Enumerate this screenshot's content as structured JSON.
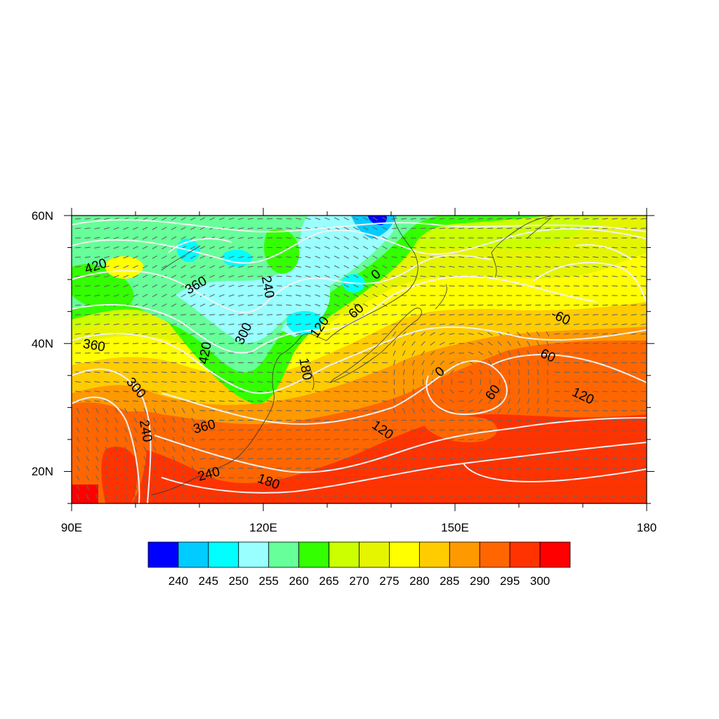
{
  "map": {
    "x_ticks": [
      "90E",
      "120E",
      "150E",
      "180"
    ],
    "y_ticks": [
      "60N",
      "40N",
      "20N"
    ],
    "contour_labels": [
      {
        "text": "420",
        "lon": 93.8,
        "lat": 52.0,
        "rot": -18
      },
      {
        "text": "360",
        "lon": 109.5,
        "lat": 49.0,
        "rot": -30
      },
      {
        "text": "240",
        "lon": 120.6,
        "lat": 48.8,
        "rot": 80
      },
      {
        "text": "300",
        "lon": 117.0,
        "lat": 41.5,
        "rot": -65
      },
      {
        "text": "420",
        "lon": 111.0,
        "lat": 38.5,
        "rot": -80
      },
      {
        "text": "360",
        "lon": 93.5,
        "lat": 39.6,
        "rot": 10
      },
      {
        "text": "300",
        "lon": 100.0,
        "lat": 33.0,
        "rot": 50
      },
      {
        "text": "240",
        "lon": 101.5,
        "lat": 26.3,
        "rot": 80
      },
      {
        "text": "360",
        "lon": 110.8,
        "lat": 26.9,
        "rot": -15
      },
      {
        "text": "240",
        "lon": 111.5,
        "lat": 19.5,
        "rot": -15
      },
      {
        "text": "180",
        "lon": 120.8,
        "lat": 18.3,
        "rot": 20
      },
      {
        "text": "180",
        "lon": 126.5,
        "lat": 36.0,
        "rot": 80
      },
      {
        "text": "120",
        "lon": 128.9,
        "lat": 42.5,
        "rot": -55
      },
      {
        "text": "60",
        "lon": 134.6,
        "lat": 45.0,
        "rot": -40
      },
      {
        "text": "0",
        "lon": 137.7,
        "lat": 50.7,
        "rot": -40
      },
      {
        "text": "120",
        "lon": 138.6,
        "lat": 26.4,
        "rot": 35
      },
      {
        "text": "0",
        "lon": 147.7,
        "lat": 35.5,
        "rot": -40
      },
      {
        "text": "60",
        "lon": 156.0,
        "lat": 32.3,
        "rot": -55
      },
      {
        "text": "-60",
        "lon": 166.5,
        "lat": 44.0,
        "rot": 25
      },
      {
        "text": "60",
        "lon": 164.5,
        "lat": 38.0,
        "rot": 25
      },
      {
        "text": "120",
        "lon": 170.0,
        "lat": 31.7,
        "rot": 25
      }
    ]
  },
  "colorbar": {
    "colors": [
      "#0000ff",
      "#00ccff",
      "#00ffff",
      "#99ffff",
      "#66ff99",
      "#33ff00",
      "#ccff00",
      "#e5f500",
      "#ffff00",
      "#ffcc00",
      "#ff9900",
      "#ff6600",
      "#ff3300",
      "#ff0000"
    ],
    "labels": [
      "240",
      "245",
      "250",
      "255",
      "260",
      "265",
      "270",
      "275",
      "280",
      "285",
      "290",
      "295",
      "300"
    ]
  }
}
